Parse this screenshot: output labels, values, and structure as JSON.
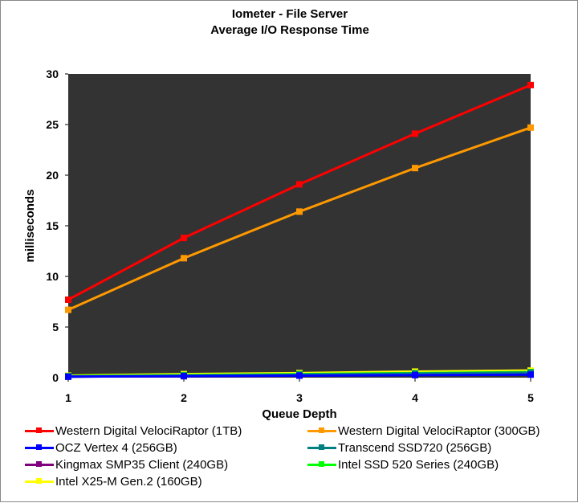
{
  "chart_data": {
    "type": "line",
    "title": "Iometer - File Server",
    "subtitle": "Average I/O Response Time",
    "xlabel": "Queue Depth",
    "ylabel": "milliseconds",
    "x": [
      1,
      2,
      3,
      4,
      5
    ],
    "ylim": [
      0,
      30
    ],
    "yticks": [
      0,
      5,
      10,
      15,
      20,
      25,
      30
    ],
    "grid": false,
    "plot_background": "#333333",
    "legend_position": "bottom",
    "series": [
      {
        "name": "Western Digital VelociRaptor (1TB)",
        "color": "#ff0000",
        "values": [
          7.7,
          13.8,
          19.1,
          24.1,
          28.9
        ]
      },
      {
        "name": "Western Digital VelociRaptor (300GB)",
        "color": "#ff9900",
        "values": [
          6.7,
          11.8,
          16.4,
          20.7,
          24.7
        ]
      },
      {
        "name": "OCZ Vertex 4 (256GB)",
        "color": "#0000ff",
        "values": [
          0.1,
          0.15,
          0.2,
          0.25,
          0.3
        ]
      },
      {
        "name": "Transcend SSD720 (256GB)",
        "color": "#008080",
        "values": [
          0.1,
          0.2,
          0.3,
          0.4,
          0.5
        ]
      },
      {
        "name": "Kingmax SMP35 Client (240GB)",
        "color": "#800080",
        "values": [
          0.1,
          0.15,
          0.2,
          0.3,
          0.35
        ]
      },
      {
        "name": "Intel SSD 520 Series (240GB)",
        "color": "#00ff00",
        "values": [
          0.15,
          0.25,
          0.35,
          0.45,
          0.55
        ]
      },
      {
        "name": "Intel X25-M Gen.2 (160GB)",
        "color": "#ffff00",
        "values": [
          0.2,
          0.35,
          0.45,
          0.6,
          0.7
        ]
      }
    ]
  }
}
